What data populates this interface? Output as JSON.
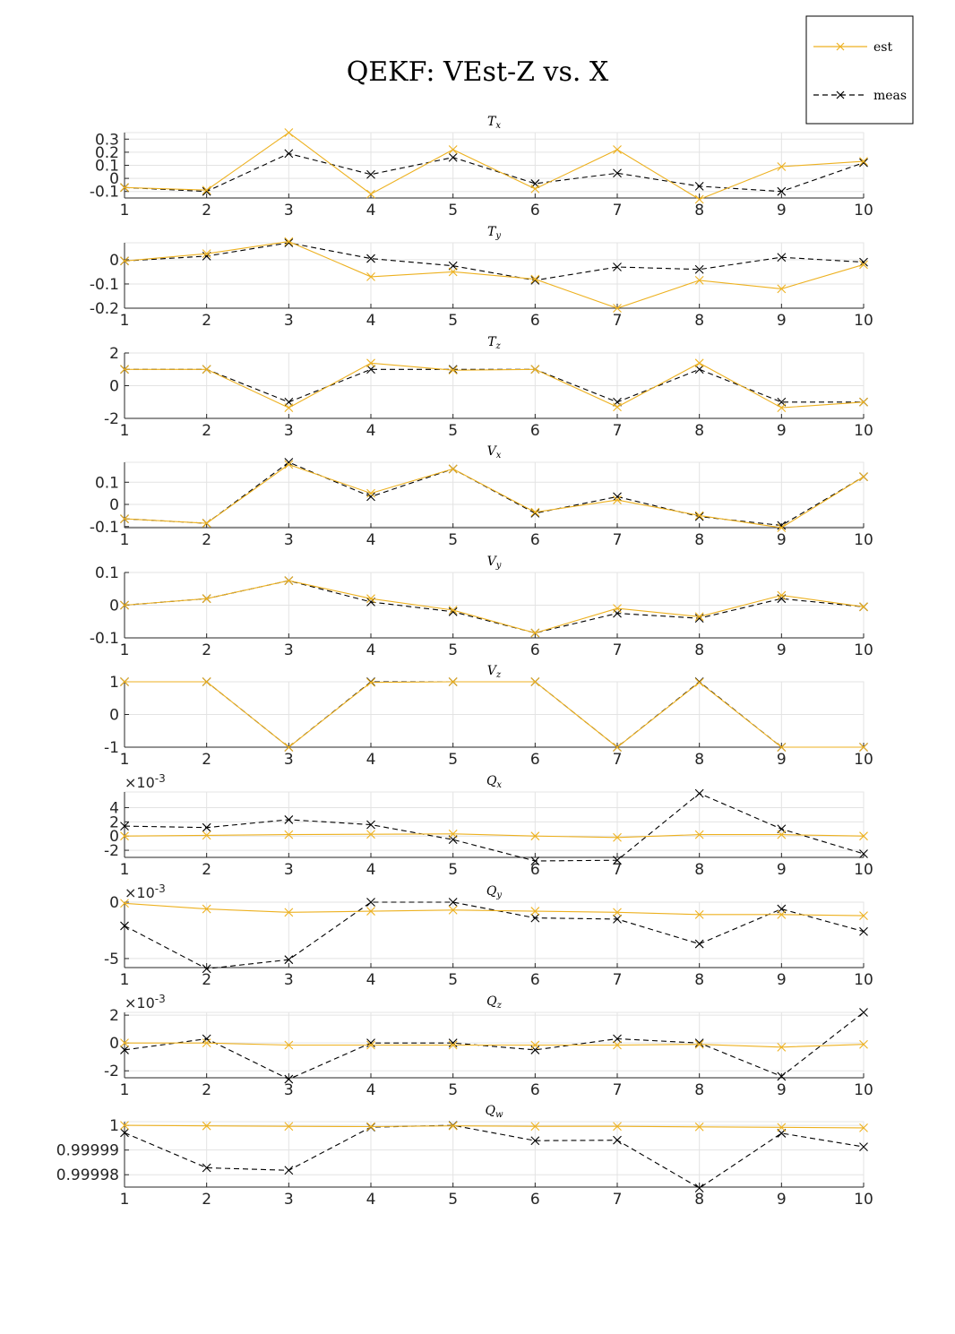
{
  "figure": {
    "title": "QEKF: VEst-Z vs. X",
    "legend": [
      {
        "label": "est",
        "color": "#EDB120",
        "dash": false
      },
      {
        "label": "meas",
        "color": "#000000",
        "dash": true
      }
    ]
  },
  "chart_data": [
    {
      "type": "line",
      "title": "T",
      "subscript": "x",
      "xlim": [
        1,
        10
      ],
      "ylim": [
        -0.15,
        0.35
      ],
      "x": [
        1,
        2,
        3,
        4,
        5,
        6,
        7,
        8,
        9,
        10
      ],
      "yticks": [
        -0.1,
        0,
        0.1,
        0.2,
        0.3
      ],
      "ytick_labels": [
        "-0.1",
        "0",
        "0.1",
        "0.2",
        "0.3"
      ],
      "exponent": "",
      "series": [
        {
          "name": "est",
          "values": [
            -0.07,
            -0.09,
            0.35,
            -0.12,
            0.22,
            -0.08,
            0.22,
            -0.16,
            0.09,
            0.13
          ]
        },
        {
          "name": "meas",
          "values": [
            -0.07,
            -0.1,
            0.19,
            0.03,
            0.16,
            -0.04,
            0.04,
            -0.06,
            -0.1,
            0.12
          ]
        }
      ]
    },
    {
      "type": "line",
      "title": "T",
      "subscript": "y",
      "xlim": [
        1,
        10
      ],
      "ylim": [
        -0.2,
        0.07
      ],
      "x": [
        1,
        2,
        3,
        4,
        5,
        6,
        7,
        8,
        9,
        10
      ],
      "yticks": [
        -0.2,
        -0.1,
        0
      ],
      "ytick_labels": [
        "-0.2",
        "-0.1",
        "0"
      ],
      "exponent": "",
      "series": [
        {
          "name": "est",
          "values": [
            -0.005,
            0.025,
            0.075,
            -0.07,
            -0.05,
            -0.08,
            -0.2,
            -0.085,
            -0.12,
            -0.02
          ]
        },
        {
          "name": "meas",
          "values": [
            -0.005,
            0.015,
            0.07,
            0.005,
            -0.025,
            -0.085,
            -0.03,
            -0.04,
            0.01,
            -0.01
          ]
        }
      ]
    },
    {
      "type": "line",
      "title": "T",
      "subscript": "z",
      "xlim": [
        1,
        10
      ],
      "ylim": [
        -2,
        2
      ],
      "x": [
        1,
        2,
        3,
        4,
        5,
        6,
        7,
        8,
        9,
        10
      ],
      "yticks": [
        -2,
        0,
        2
      ],
      "ytick_labels": [
        "-2",
        "0",
        "2"
      ],
      "exponent": "",
      "series": [
        {
          "name": "est",
          "values": [
            1,
            1,
            -1.35,
            1.38,
            0.95,
            1,
            -1.3,
            1.38,
            -1.35,
            -1
          ]
        },
        {
          "name": "meas",
          "values": [
            1,
            1,
            -1,
            1,
            1,
            1,
            -1,
            1,
            -1,
            -1
          ]
        }
      ]
    },
    {
      "type": "line",
      "title": "V",
      "subscript": "x",
      "xlim": [
        1,
        10
      ],
      "ylim": [
        -0.105,
        0.19
      ],
      "x": [
        1,
        2,
        3,
        4,
        5,
        6,
        7,
        8,
        9,
        10
      ],
      "yticks": [
        -0.1,
        0,
        0.1
      ],
      "ytick_labels": [
        "-0.1",
        "0",
        "0.1"
      ],
      "exponent": "",
      "series": [
        {
          "name": "est",
          "values": [
            -0.065,
            -0.085,
            0.18,
            0.05,
            0.16,
            -0.035,
            0.02,
            -0.05,
            -0.105,
            0.125
          ]
        },
        {
          "name": "meas",
          "values": [
            -0.065,
            -0.085,
            0.19,
            0.035,
            0.16,
            -0.04,
            0.035,
            -0.055,
            -0.095,
            0.125
          ]
        }
      ]
    },
    {
      "type": "line",
      "title": "V",
      "subscript": "y",
      "xlim": [
        1,
        10
      ],
      "ylim": [
        -0.1,
        0.1
      ],
      "x": [
        1,
        2,
        3,
        4,
        5,
        6,
        7,
        8,
        9,
        10
      ],
      "yticks": [
        -0.1,
        0,
        0.1
      ],
      "ytick_labels": [
        "-0.1",
        "0",
        "0.1"
      ],
      "exponent": "",
      "series": [
        {
          "name": "est",
          "values": [
            0,
            0.02,
            0.075,
            0.02,
            -0.015,
            -0.085,
            -0.01,
            -0.035,
            0.03,
            -0.005
          ]
        },
        {
          "name": "meas",
          "values": [
            0,
            0.02,
            0.075,
            0.01,
            -0.02,
            -0.085,
            -0.025,
            -0.04,
            0.02,
            -0.005
          ]
        }
      ]
    },
    {
      "type": "line",
      "title": "V",
      "subscript": "z",
      "xlim": [
        1,
        10
      ],
      "ylim": [
        -1,
        1
      ],
      "x": [
        1,
        2,
        3,
        4,
        5,
        6,
        7,
        8,
        9,
        10
      ],
      "yticks": [
        -1,
        0,
        1
      ],
      "ytick_labels": [
        "-1",
        "0",
        "1"
      ],
      "exponent": "",
      "series": [
        {
          "name": "est",
          "values": [
            1,
            1,
            -1,
            0.98,
            1,
            1,
            -1,
            0.98,
            -1,
            -1
          ]
        },
        {
          "name": "meas",
          "values": [
            1,
            1,
            -1,
            1,
            1,
            1,
            -1,
            1,
            -1,
            -1
          ]
        }
      ]
    },
    {
      "type": "line",
      "title": "Q",
      "subscript": "x",
      "xlim": [
        1,
        10
      ],
      "ylim": [
        -3,
        6.2
      ],
      "x": [
        1,
        2,
        3,
        4,
        5,
        6,
        7,
        8,
        9,
        10
      ],
      "yticks": [
        -2,
        0,
        2,
        4
      ],
      "ytick_labels": [
        "-2",
        "0",
        "2",
        "4"
      ],
      "exponent": "-3",
      "series": [
        {
          "name": "est",
          "values": [
            0,
            0.1,
            0.2,
            0.25,
            0.3,
            0,
            -0.2,
            0.2,
            0.2,
            0
          ]
        },
        {
          "name": "meas",
          "values": [
            1.4,
            1.2,
            2.3,
            1.6,
            -0.5,
            -3.5,
            -3.4,
            6.0,
            1.0,
            -2.5
          ]
        }
      ]
    },
    {
      "type": "line",
      "title": "Q",
      "subscript": "y",
      "xlim": [
        1,
        10
      ],
      "ylim": [
        -5.8,
        0
      ],
      "x": [
        1,
        2,
        3,
        4,
        5,
        6,
        7,
        8,
        9,
        10
      ],
      "yticks": [
        -5,
        0
      ],
      "ytick_labels": [
        "-5",
        "0"
      ],
      "exponent": "-3",
      "series": [
        {
          "name": "est",
          "values": [
            -0.1,
            -0.6,
            -0.9,
            -0.8,
            -0.7,
            -0.8,
            -0.9,
            -1.1,
            -1.1,
            -1.2
          ]
        },
        {
          "name": "meas",
          "values": [
            -2.1,
            -5.9,
            -5.1,
            0,
            0,
            -1.4,
            -1.5,
            -3.7,
            -0.6,
            -2.6
          ]
        }
      ]
    },
    {
      "type": "line",
      "title": "Q",
      "subscript": "z",
      "xlim": [
        1,
        10
      ],
      "ylim": [
        -2.5,
        2.2
      ],
      "x": [
        1,
        2,
        3,
        4,
        5,
        6,
        7,
        8,
        9,
        10
      ],
      "yticks": [
        -2,
        0,
        2
      ],
      "ytick_labels": [
        "-2",
        "0",
        "2"
      ],
      "exponent": "-3",
      "series": [
        {
          "name": "est",
          "values": [
            0,
            0,
            -0.15,
            -0.15,
            -0.15,
            -0.15,
            -0.15,
            -0.1,
            -0.3,
            -0.1
          ]
        },
        {
          "name": "meas",
          "values": [
            -0.5,
            0.3,
            -2.6,
            0,
            0,
            -0.5,
            0.3,
            0,
            -2.4,
            2.2
          ]
        }
      ]
    },
    {
      "type": "line",
      "title": "Q",
      "subscript": "w",
      "xlim": [
        1,
        10
      ],
      "ylim": [
        0.999975,
        1.0000015
      ],
      "x": [
        1,
        2,
        3,
        4,
        5,
        6,
        7,
        8,
        9,
        10
      ],
      "yticks": [
        0.99998,
        0.99999,
        1
      ],
      "ytick_labels": [
        "0.99998",
        "0.99999",
        "1"
      ],
      "exponent": "",
      "series": [
        {
          "name": "est",
          "values": [
            1.0,
            0.9999998,
            0.9999996,
            0.9999995,
            0.9999998,
            0.9999996,
            0.9999996,
            0.9999994,
            0.9999992,
            0.999999
          ]
        },
        {
          "name": "meas",
          "values": [
            0.999997,
            0.9999828,
            0.9999818,
            0.9999993,
            1.0,
            0.9999938,
            0.999994,
            0.9999746,
            0.9999968,
            0.9999913
          ]
        }
      ]
    }
  ]
}
